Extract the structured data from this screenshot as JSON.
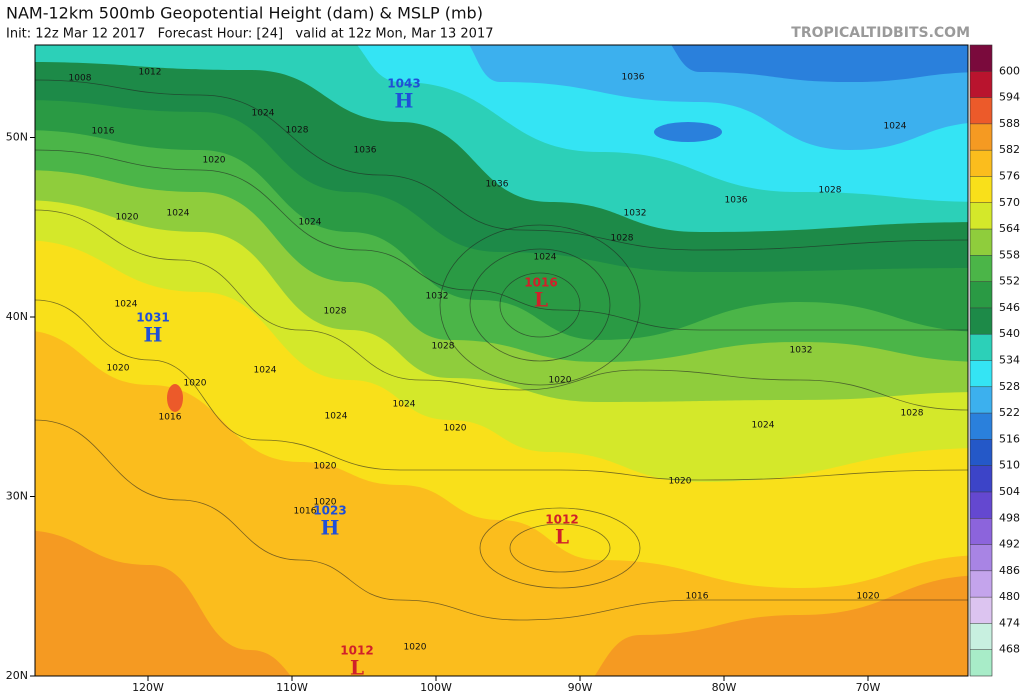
{
  "header": {
    "title": "NAM-12km 500mb Geopotential Height (dam) & MSLP (mb)",
    "subtitle": "Init: 12z Mar 12 2017   Forecast Hour: [24]   valid at 12z Mon, Mar 13 2017",
    "watermark": "TROPICALTIDBITS.COM"
  },
  "map": {
    "lat_ticks": [
      {
        "value": 50,
        "label": "50N"
      },
      {
        "value": 40,
        "label": "40N"
      },
      {
        "value": 30,
        "label": "30N"
      },
      {
        "value": 20,
        "label": "20N"
      }
    ],
    "lon_ticks": [
      {
        "value": -120,
        "label": "120W"
      },
      {
        "value": -110,
        "label": "110W"
      },
      {
        "value": -100,
        "label": "100W"
      },
      {
        "value": -90,
        "label": "90W"
      },
      {
        "value": -80,
        "label": "80W"
      },
      {
        "value": -70,
        "label": "70W"
      }
    ],
    "pressure_centers": [
      {
        "type": "H",
        "value": 1043
      },
      {
        "type": "H",
        "value": 1031
      },
      {
        "type": "H",
        "value": 1023
      },
      {
        "type": "L",
        "value": 1016
      },
      {
        "type": "L",
        "value": 1012
      },
      {
        "type": "L",
        "value": 1012
      }
    ],
    "isobar_labels": [
      1008,
      1012,
      1016,
      1020,
      1024,
      1028,
      1036,
      1036,
      1024,
      1028,
      1036,
      1032,
      1028,
      1036,
      1024,
      1032,
      1028,
      1020,
      1024,
      1020,
      1024,
      1028,
      1032,
      1020,
      1016,
      1020,
      1020,
      1020,
      1016,
      1024,
      1024,
      1020,
      1024,
      1024,
      1020,
      1020,
      1016,
      1020,
      1028,
      1024
    ]
  },
  "colorbar": {
    "levels": [
      600,
      594,
      588,
      582,
      576,
      570,
      564,
      558,
      552,
      546,
      540,
      534,
      528,
      522,
      516,
      510,
      504,
      498,
      492,
      486,
      480,
      474,
      468
    ],
    "colors": [
      "#7a0a3c",
      "#b9142e",
      "#ec5a2a",
      "#f59a22",
      "#fbbd1d",
      "#f9e01a",
      "#d4e82a",
      "#8fcd3c",
      "#4bb548",
      "#2a9a44",
      "#1d8a48",
      "#2cd0b8",
      "#34e4f4",
      "#3cb0ee",
      "#2a80dc",
      "#2458c8",
      "#3c44c8",
      "#6448d0",
      "#8c64dc",
      "#a884e4",
      "#c4a4ec",
      "#dcc4f0",
      "#c8f0e0",
      "#a8ecc8"
    ]
  }
}
